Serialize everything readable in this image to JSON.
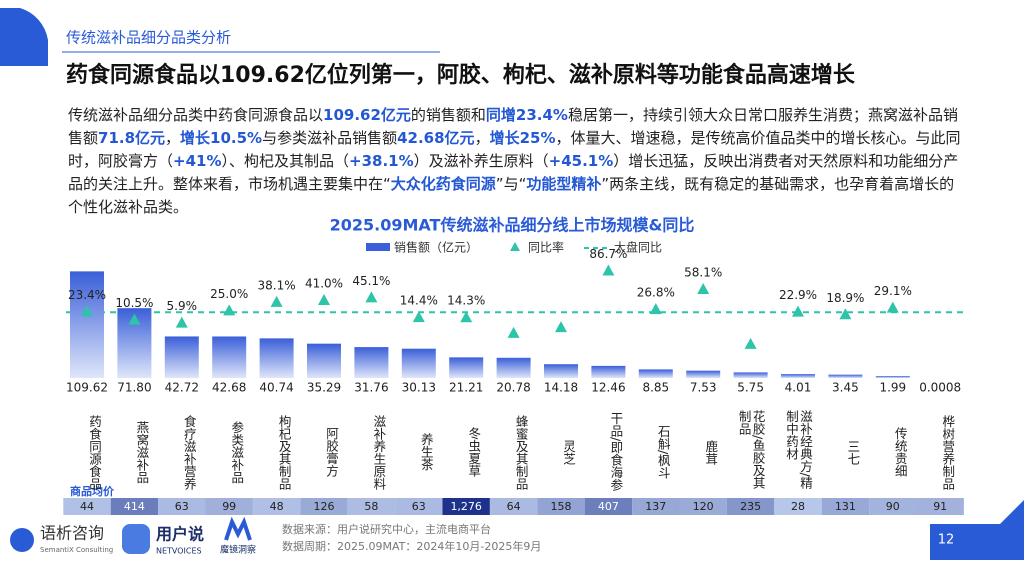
{
  "header": {
    "section": "传统滋补品细分品类分析",
    "headline": "药食同源食品以109.62亿位列第一，阿胶、枸杞、滋补原料等功能食品高速增长"
  },
  "paragraph": [
    {
      "text": "传统滋补品细分品类中药食同源食品以",
      "em": false
    },
    {
      "text": "109.62亿元",
      "em": true
    },
    {
      "text": "的销售额和",
      "em": false
    },
    {
      "text": "同增23.4%",
      "em": true
    },
    {
      "text": "稳居第一，持续引领大众日常口服养生消费；燕窝滋补品销售额",
      "em": false
    },
    {
      "text": "71.8亿元",
      "em": true
    },
    {
      "text": "，",
      "em": false
    },
    {
      "text": "增长10.5%",
      "em": true
    },
    {
      "text": "与参类滋补品销售额",
      "em": false
    },
    {
      "text": "42.68亿元",
      "em": true
    },
    {
      "text": "，",
      "em": false
    },
    {
      "text": "增长25%",
      "em": true
    },
    {
      "text": "，体量大、增速稳，是传统高价值品类中的增长核心。与此同时，阿胶膏方（",
      "em": false
    },
    {
      "text": "+41%",
      "em": true
    },
    {
      "text": "）、枸杞及其制品（",
      "em": false
    },
    {
      "text": "+38.1%",
      "em": true
    },
    {
      "text": "）及滋补养生原料（",
      "em": false
    },
    {
      "text": "+45.1%",
      "em": true
    },
    {
      "text": "）增长迅猛，反映出消费者对天然原料和功能细分产品的关注上升。整体来看，市场机遇主要集中在“",
      "em": false
    },
    {
      "text": "大众化药食同源",
      "em": true
    },
    {
      "text": "”与“",
      "em": false
    },
    {
      "text": "功能型精补",
      "em": true
    },
    {
      "text": "”两条主线，既有稳定的基础需求，也孕育着高增长的个性化滋补品类。",
      "em": false
    }
  ],
  "chart_data": {
    "type": "bar-line",
    "title": "2025.09MAT传统滋补品细分线上市场规模&同比",
    "categories": [
      "药食同源食品",
      "燕窝滋补品",
      "食疗滋补营养",
      "参类滋补品",
      "枸杞及其制品",
      "阿胶膏方",
      "滋补养生原料",
      "养生茶",
      "冬虫夏草",
      "蜂蜜及其制品",
      "灵芝",
      "干品/即食海参",
      "石斛/枫斗",
      "鹿茸",
      "花胶/鱼胶及其制品",
      "滋补经典方/精制中药材",
      "三七",
      "传统贵细",
      "桦树营养制品"
    ],
    "series": [
      {
        "name": "销售额（亿元）",
        "color": "#3a5fd8",
        "values": [
          109.62,
          71.8,
          42.72,
          42.68,
          40.74,
          35.29,
          31.76,
          30.13,
          21.21,
          20.78,
          14.18,
          12.46,
          8.85,
          7.53,
          5.75,
          4.01,
          3.45,
          1.99,
          0.0008
        ],
        "value_labels": [
          "109.62",
          "71.80",
          "42.72",
          "42.68",
          "40.74",
          "35.29",
          "31.76",
          "30.13",
          "21.21",
          "20.78",
          "14.18",
          "12.46",
          "8.85",
          "7.53",
          "5.75",
          "4.01",
          "3.45",
          "1.99",
          "0.0008"
        ]
      },
      {
        "name": "同比率",
        "color": "#2ec4a9",
        "axis": "y2",
        "values": [
          23.4,
          10.5,
          5.9,
          25.0,
          38.1,
          41.0,
          45.1,
          14.4,
          14.3,
          -10,
          -1,
          86.7,
          26.8,
          58.1,
          -27,
          22.9,
          18.9,
          29.1,
          null
        ],
        "value_labels": [
          "23.4%",
          "10.5%",
          "5.9%",
          "25.0%",
          "38.1%",
          "41.0%",
          "45.1%",
          "14.4%",
          "14.3%",
          null,
          null,
          "86.7%",
          "26.8%",
          "58.1%",
          null,
          "22.9%",
          "18.9%",
          "29.1%",
          null
        ]
      },
      {
        "name": "大盘同比",
        "color": "#2ec4a9",
        "axis": "y2",
        "value": 22
      }
    ],
    "ylim": [
      0,
      110
    ],
    "y2lim": [
      -80,
      86
    ],
    "avg_price": {
      "label": "商品均价",
      "values": [
        44,
        414,
        63,
        99,
        48,
        126,
        58,
        63,
        1276,
        64,
        158,
        407,
        137,
        120,
        235,
        28,
        131,
        90,
        91
      ],
      "value_labels": [
        "44",
        "414",
        "63",
        "99",
        "48",
        "126",
        "58",
        "63",
        "1,276",
        "64",
        "158",
        "407",
        "137",
        "120",
        "235",
        "28",
        "131",
        "90",
        "91"
      ]
    }
  },
  "footer": {
    "logos": [
      "语析咨询",
      "SemantiX Consulting",
      "用户说",
      "NETVOICES",
      "魔镜洞察"
    ],
    "source": "数据来源：用户说研究中心，主流电商平台",
    "period": "数据周期：2025.09MAT：2024年10月-2025年9月",
    "page": "12"
  }
}
